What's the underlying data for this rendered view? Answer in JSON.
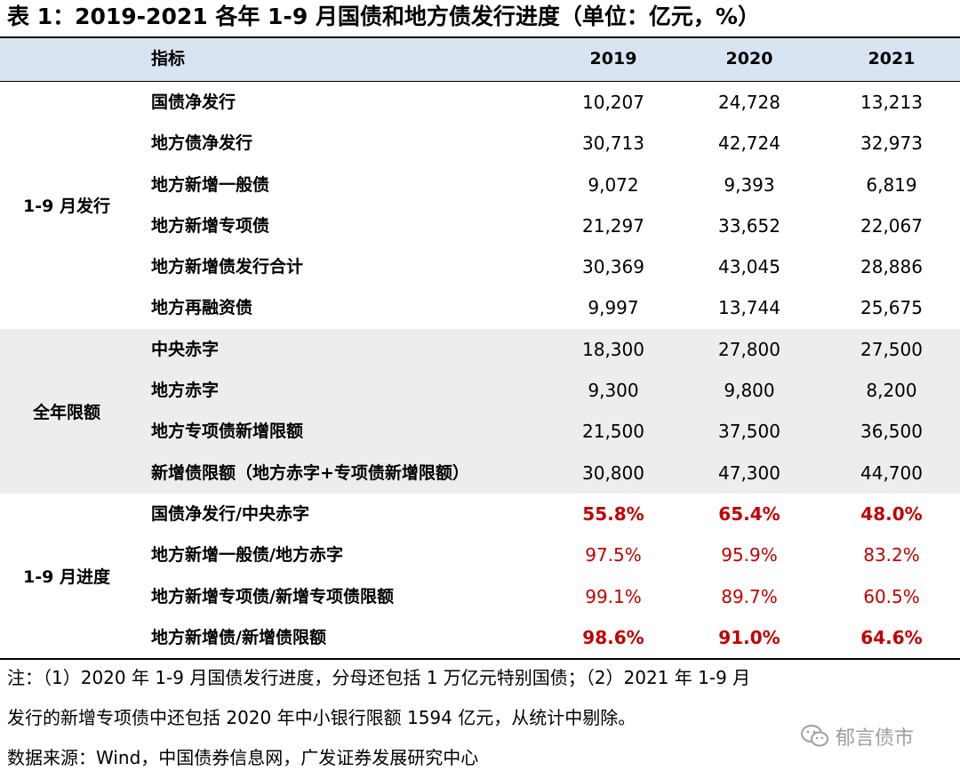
{
  "title": "表 1：2019-2021 各年 1-9 月国债和地方债发行进度（单位：亿元，%）",
  "header": {
    "indicator": "指标",
    "years": [
      "2019",
      "2020",
      "2021"
    ]
  },
  "sections": [
    {
      "label": "1-9 月发行",
      "rows": [
        {
          "name": "国债净发行",
          "values": [
            "10,207",
            "24,728",
            "13,213"
          ]
        },
        {
          "name": "地方债净发行",
          "values": [
            "30,713",
            "42,724",
            "32,973"
          ]
        },
        {
          "name": "地方新增一般债",
          "values": [
            "9,072",
            "9,393",
            "6,819"
          ]
        },
        {
          "name": "地方新增专项债",
          "values": [
            "21,297",
            "33,652",
            "22,067"
          ]
        },
        {
          "name": "地方新增债发行合计",
          "values": [
            "30,369",
            "43,045",
            "28,886"
          ]
        },
        {
          "name": "地方再融资债",
          "values": [
            "9,997",
            "13,744",
            "25,675"
          ]
        }
      ]
    },
    {
      "label": "全年限额",
      "rows": [
        {
          "name": "中央赤字",
          "values": [
            "18,300",
            "27,800",
            "27,500"
          ]
        },
        {
          "name": "地方赤字",
          "values": [
            "9,300",
            "9,800",
            "8,200"
          ]
        },
        {
          "name": "地方专项债新增限额",
          "values": [
            "21,500",
            "37,500",
            "36,500"
          ]
        },
        {
          "name": "新增债限额（地方赤字+专项债新增限额）",
          "values": [
            "30,800",
            "47,300",
            "44,700"
          ]
        }
      ]
    },
    {
      "label": "1-9 月进度",
      "rows": [
        {
          "name": "国债净发行/中央赤字",
          "values": [
            "55.8%",
            "65.4%",
            "48.0%"
          ]
        },
        {
          "name": "地方新增一般债/地方赤字",
          "values": [
            "97.5%",
            "95.9%",
            "83.2%"
          ]
        },
        {
          "name": "地方新增专项债/新增专项债限额",
          "values": [
            "99.1%",
            "89.7%",
            "60.5%"
          ]
        },
        {
          "name": "地方新增债/新增债限额",
          "values": [
            "98.6%",
            "91.0%",
            "64.6%"
          ]
        }
      ]
    }
  ],
  "notes": [
    "注：（1）2020 年 1-9 月国债发行进度，分母还包括 1 万亿元特别国债；（2）2021 年 1-9 月",
    "发行的新增专项债中还包括 2020 年中小银行限额 1594 亿元，从统计中剔除。",
    "数据来源：Wind，中国债券信息网，广发证券发展研究中心"
  ],
  "watermark": "郁言债市",
  "colors": {
    "header_bg": "#d9e4f2",
    "band_bg": "#ededed",
    "progress_red": "#c00000"
  }
}
